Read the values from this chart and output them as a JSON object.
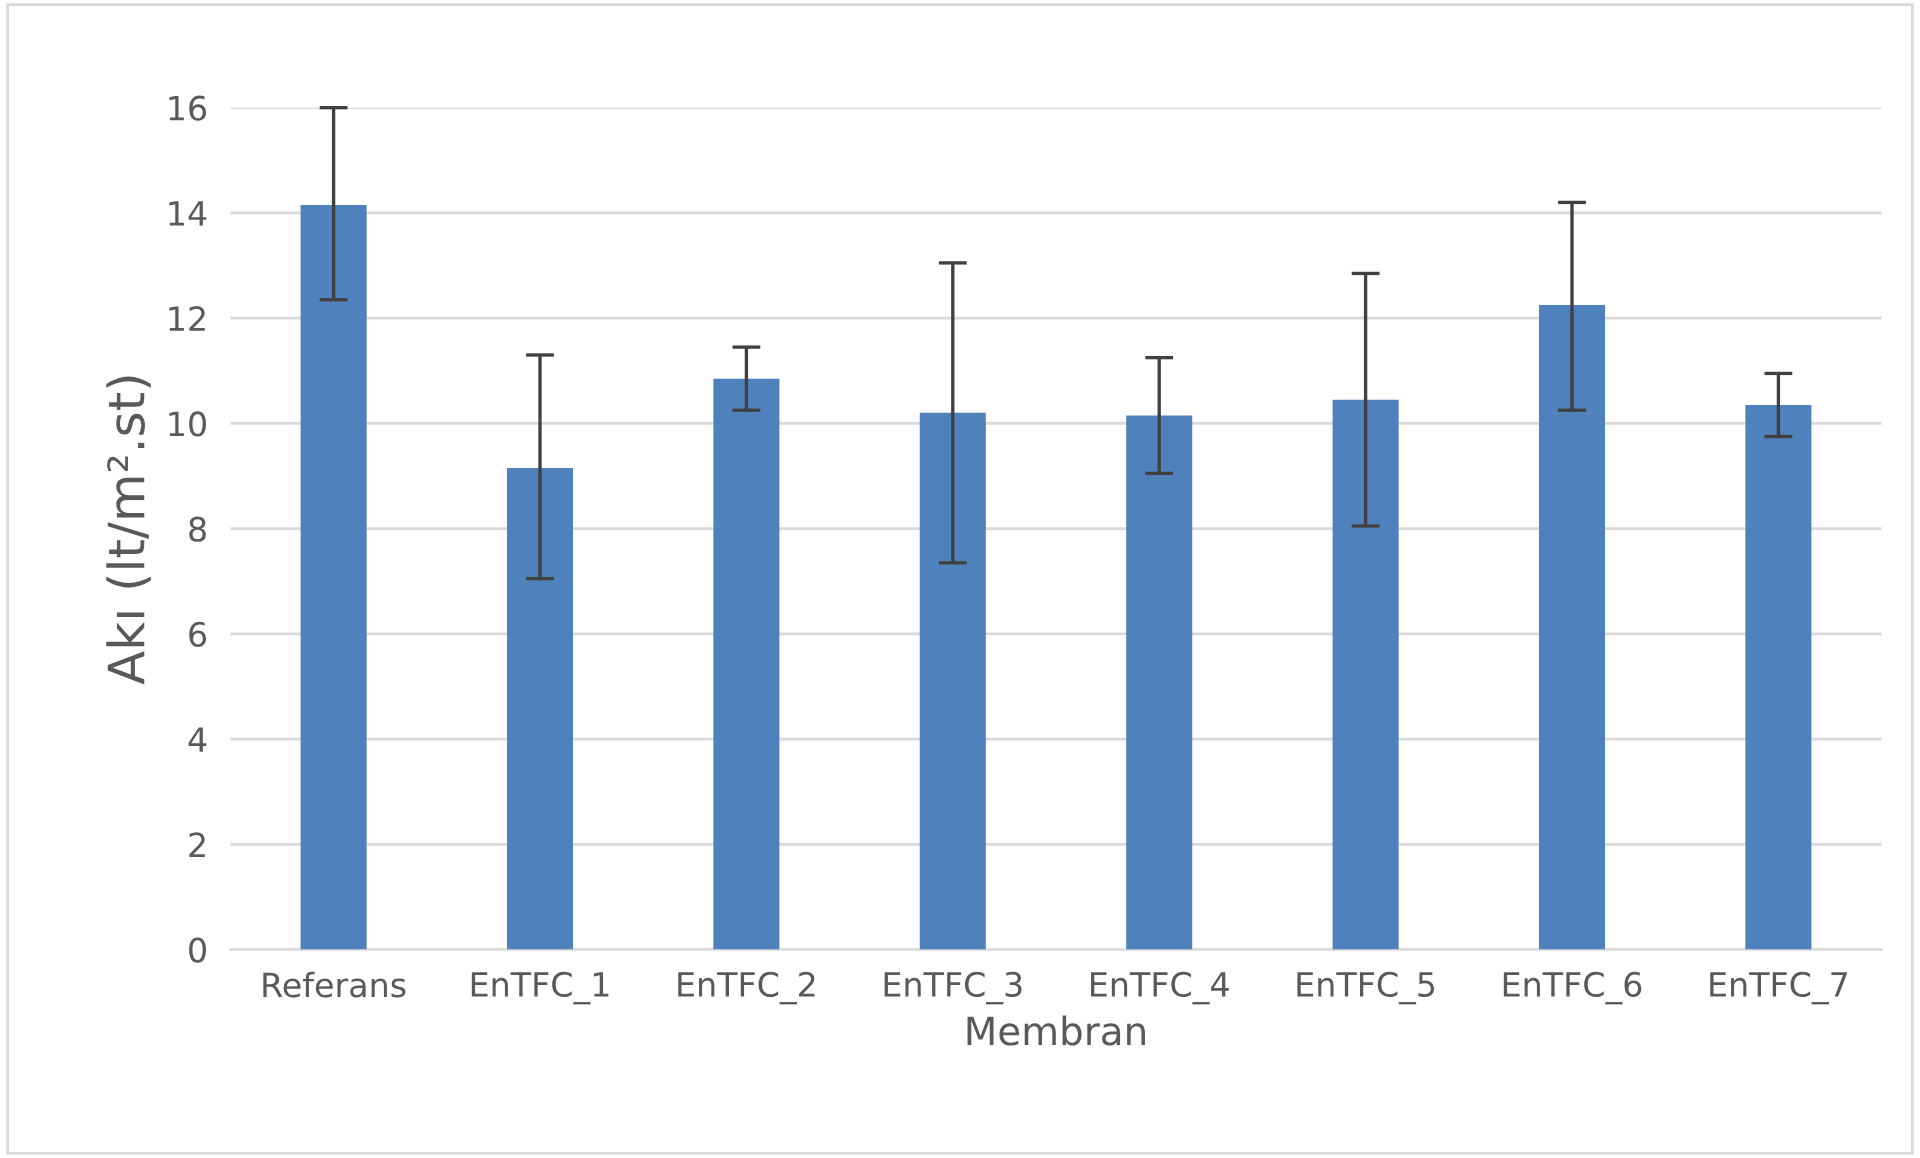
{
  "chart_data": {
    "type": "bar",
    "xlabel": "Membran",
    "ylabel": "Akı (lt/m².st)",
    "categories": [
      "Referans",
      "EnTFC_1",
      "EnTFC_2",
      "EnTFC_3",
      "EnTFC_4",
      "EnTFC_5",
      "EnTFC_6",
      "EnTFC_7"
    ],
    "values": [
      14.15,
      9.15,
      10.85,
      10.2,
      10.15,
      10.45,
      12.25,
      10.35
    ],
    "errors": [
      [
        12.35,
        16.0
      ],
      [
        7.05,
        11.3
      ],
      [
        10.25,
        11.45
      ],
      [
        7.35,
        13.05
      ],
      [
        9.05,
        11.25
      ],
      [
        8.05,
        12.85
      ],
      [
        10.25,
        14.2
      ],
      [
        9.75,
        10.95
      ]
    ],
    "color": "#4f81bd",
    "ylim": [
      0,
      16
    ],
    "yticks": [
      0,
      2,
      4,
      6,
      8,
      10,
      12,
      14,
      16
    ],
    "grid": "y",
    "legend": false
  }
}
